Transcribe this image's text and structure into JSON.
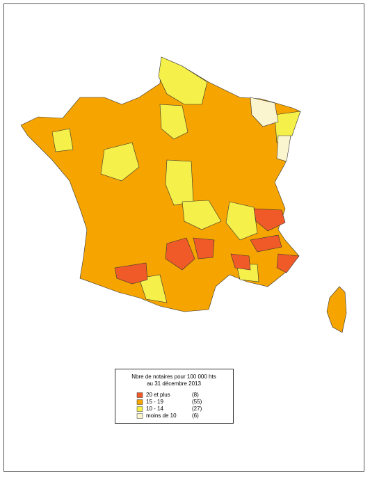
{
  "legend": {
    "title": [
      "Nbre de notaires pour 100 000 hts",
      "au 31 décembre 2013"
    ],
    "items": [
      {
        "label": "20 et plus",
        "count": "(8)",
        "color": "#f05a28"
      },
      {
        "label": "15 - 19",
        "count": "(55)",
        "color": "#f5a400"
      },
      {
        "label": "10 - 14",
        "count": "(27)",
        "color": "#f5f04a"
      },
      {
        "label": "moins de 10",
        "count": "(6)",
        "color": "#fbf5cf"
      }
    ]
  }
}
